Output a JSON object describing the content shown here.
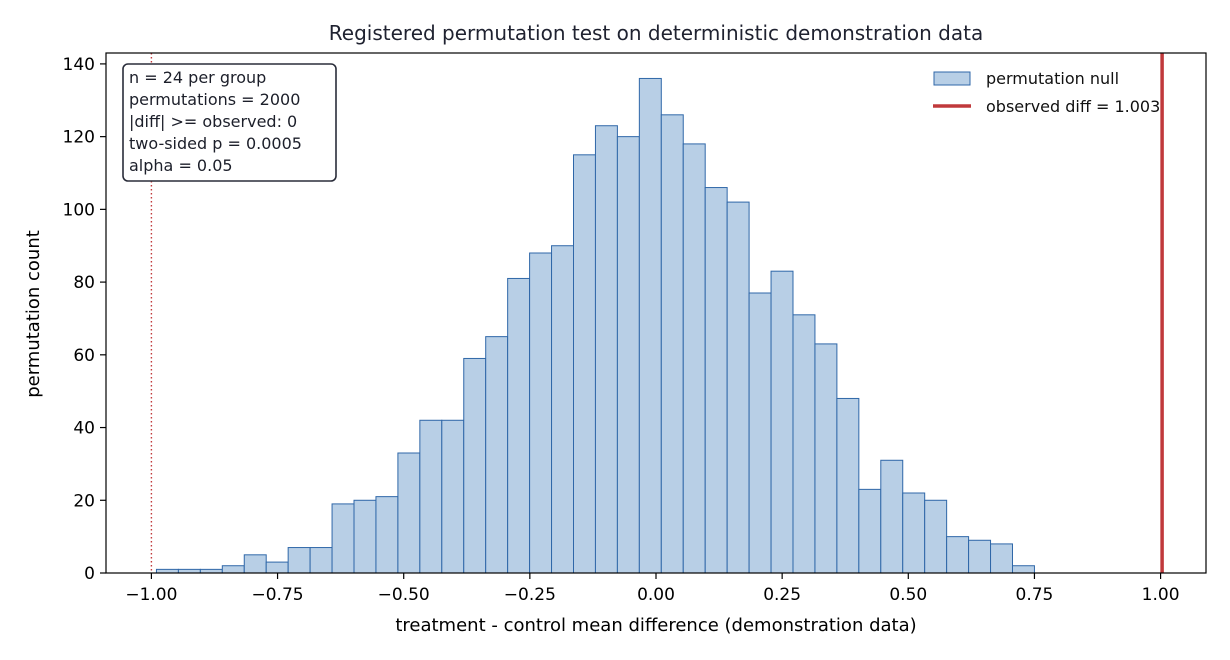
{
  "chart_data": {
    "type": "bar",
    "title": "Registered permutation test on deterministic demonstration data",
    "xlabel": "treatment - control mean difference (demonstration data)",
    "ylabel": "permutation count",
    "xlim": [
      -1.09,
      1.09
    ],
    "ylim": [
      0,
      143
    ],
    "x_ticks": [
      -1.0,
      -0.75,
      -0.5,
      -0.25,
      0.0,
      0.25,
      0.5,
      0.75,
      1.0
    ],
    "x_tick_labels": [
      "−1.00",
      "−0.75",
      "−0.50",
      "−0.25",
      "0.00",
      "0.25",
      "0.50",
      "0.75",
      "1.00"
    ],
    "y_ticks": [
      0,
      20,
      40,
      60,
      80,
      100,
      120,
      140
    ],
    "y_tick_labels": [
      "0",
      "20",
      "40",
      "60",
      "80",
      "100",
      "120",
      "140"
    ],
    "grid": false,
    "legend_position": "top-right",
    "bin_start": -0.99,
    "bin_width": 0.0435,
    "counts": [
      1,
      1,
      1,
      2,
      5,
      3,
      7,
      7,
      19,
      20,
      21,
      33,
      42,
      42,
      59,
      65,
      81,
      88,
      90,
      115,
      123,
      120,
      136,
      126,
      118,
      106,
      102,
      77,
      83,
      71,
      63,
      48,
      23,
      31,
      22,
      20,
      10,
      9,
      8,
      2
    ],
    "series": [
      {
        "name": "permutation null",
        "kind": "histogram"
      },
      {
        "name": "observed diff = 1.003",
        "kind": "vline",
        "x": 1.003
      }
    ],
    "alpha_line": {
      "x": -1.0
    },
    "stats_box": [
      "n = 24 per group",
      "permutations = 2000",
      "|diff| >= observed: 0",
      "two-sided p = 0.0005",
      "alpha = 0.05"
    ],
    "colors": {
      "bar_fill": "#b8cfe6",
      "bar_edge": "#2f67a8",
      "observed_line": "#c0393b",
      "alpha_line": "#c0393b"
    }
  }
}
